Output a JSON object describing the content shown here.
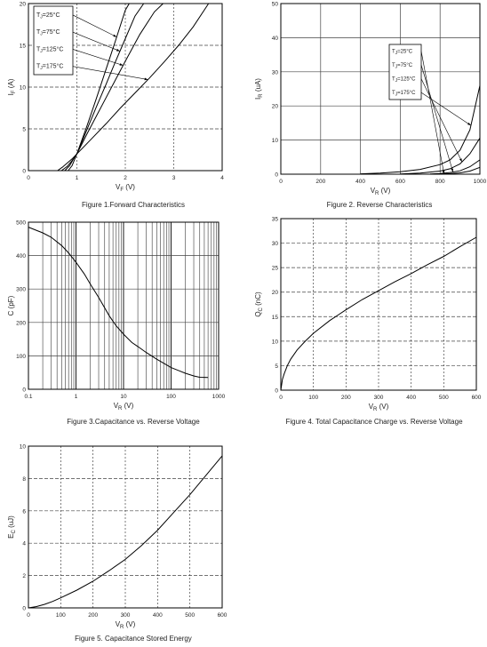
{
  "chart_data": [
    {
      "id": "fig1",
      "type": "line",
      "caption": "Figure 1.Forward Characteristics",
      "xlabel": "VF (V)",
      "xlabel_main": "V",
      "xlabel_sub": "F",
      "xlabel_unit": "(V)",
      "ylabel": "IF (A)",
      "ylabel_main": "I",
      "ylabel_sub": "F",
      "ylabel_unit": "(A)",
      "xlim": [
        0,
        4
      ],
      "ylim": [
        0,
        20
      ],
      "xticks": [
        "0",
        "1",
        "2",
        "3",
        "4"
      ],
      "yticks": [
        "0",
        "5",
        "10",
        "15",
        "20"
      ],
      "legend": [
        "TJ=25°C",
        "TJ=75°C",
        "TJ=125°C",
        "TJ=175°C"
      ],
      "series": [
        {
          "name": "TJ=25°C",
          "x": [
            0.82,
            0.9,
            1.0,
            1.2,
            1.4,
            1.6,
            1.8,
            2.0,
            2.08
          ],
          "y": [
            0,
            0.6,
            2,
            5.2,
            8.6,
            12.1,
            15.6,
            19.2,
            20
          ]
        },
        {
          "name": "TJ=75°C",
          "x": [
            0.75,
            0.85,
            0.95,
            1.0,
            1.2,
            1.4,
            1.6,
            1.8,
            2.0,
            2.2,
            2.38
          ],
          "y": [
            0,
            0.6,
            1.6,
            2,
            4.8,
            7.6,
            10.3,
            13.1,
            15.8,
            18.5,
            20
          ]
        },
        {
          "name": "TJ=125°C",
          "x": [
            0.68,
            0.8,
            0.9,
            1.0,
            1.2,
            1.4,
            1.6,
            1.8,
            2.0,
            2.3,
            2.6,
            2.78
          ],
          "y": [
            0,
            0.5,
            1.2,
            2,
            4.3,
            6.5,
            8.7,
            10.9,
            13.1,
            16.3,
            19.0,
            20
          ]
        },
        {
          "name": "TJ=175°C",
          "x": [
            0.6,
            0.7,
            0.8,
            0.9,
            1.0,
            1.3,
            1.6,
            1.9,
            2.2,
            2.5,
            2.8,
            3.1,
            3.4,
            3.72
          ],
          "y": [
            0,
            0.4,
            0.9,
            1.4,
            2,
            3.8,
            5.6,
            7.5,
            9.3,
            11.1,
            13.0,
            15.0,
            17.2,
            20
          ]
        }
      ]
    },
    {
      "id": "fig2",
      "type": "line",
      "caption": "Figure 2. Reverse Characteristics",
      "xlabel": "VR (V)",
      "xlabel_main": "V",
      "xlabel_sub": "R",
      "xlabel_unit": "(V)",
      "ylabel": "IR (uA)",
      "ylabel_main": "I",
      "ylabel_sub": "R",
      "ylabel_unit": "(uA)",
      "xlim": [
        0,
        1000
      ],
      "ylim": [
        0,
        50
      ],
      "xticks": [
        "0",
        "200",
        "400",
        "600",
        "800",
        "1000"
      ],
      "yticks": [
        "0",
        "10",
        "20",
        "30",
        "40",
        "50"
      ],
      "legend": [
        "TJ=25°C",
        "TJ=75°C",
        "TJ=125°C",
        "TJ=175°C"
      ],
      "series": [
        {
          "name": "TJ=175°C",
          "x": [
            400,
            500,
            600,
            700,
            800,
            850,
            900,
            950,
            1000
          ],
          "y": [
            0.1,
            0.3,
            0.7,
            1.4,
            2.8,
            4.2,
            7.0,
            13.0,
            26
          ]
        },
        {
          "name": "TJ=125°C",
          "x": [
            600,
            700,
            800,
            850,
            900,
            950,
            1000
          ],
          "y": [
            0.05,
            0.3,
            0.9,
            1.6,
            3.0,
            6.0,
            10.6
          ]
        },
        {
          "name": "TJ=75°C",
          "x": [
            750,
            800,
            850,
            900,
            950,
            1000
          ],
          "y": [
            0.05,
            0.2,
            0.5,
            1.0,
            2.2,
            4.2
          ]
        },
        {
          "name": "TJ=25°C",
          "x": [
            800,
            850,
            900,
            950,
            1000
          ],
          "y": [
            0.05,
            0.15,
            0.4,
            0.9,
            2.0
          ]
        }
      ]
    },
    {
      "id": "fig3",
      "type": "line",
      "caption": "Figure 3.Capacitance vs. Reverse Voltage",
      "xlabel": "VR (V)",
      "xlabel_main": "V",
      "xlabel_sub": "R",
      "xlabel_unit": "(V)",
      "ylabel": "C (pF)",
      "ylabel_main": "C",
      "ylabel_sub": "",
      "ylabel_unit": "(pF)",
      "xscale": "log",
      "xlim": [
        0.1,
        1000
      ],
      "ylim": [
        0,
        500
      ],
      "xticks": [
        "0.1",
        "1",
        "10",
        "100",
        "1000"
      ],
      "yticks": [
        "0",
        "100",
        "200",
        "300",
        "400",
        "500"
      ],
      "series": [
        {
          "name": "",
          "x": [
            0.1,
            0.15,
            0.2,
            0.3,
            0.5,
            0.7,
            1,
            1.5,
            2,
            3,
            5,
            7,
            10,
            15,
            20,
            30,
            50,
            70,
            100,
            150,
            200,
            300,
            400,
            600
          ],
          "y": [
            485,
            475,
            468,
            455,
            430,
            408,
            380,
            345,
            315,
            275,
            220,
            190,
            165,
            140,
            128,
            110,
            90,
            78,
            65,
            55,
            48,
            40,
            36,
            35
          ]
        }
      ]
    },
    {
      "id": "fig4",
      "type": "line",
      "caption": "Figure 4. Total Capacitance Charge vs. Reverse Voltage",
      "xlabel": "VR (V)",
      "xlabel_main": "V",
      "xlabel_sub": "R",
      "xlabel_unit": "(V)",
      "ylabel": "QC (nC)",
      "ylabel_main": "Q",
      "ylabel_sub": "C",
      "ylabel_unit": "(nC)",
      "xlim": [
        0,
        600
      ],
      "ylim": [
        0,
        35
      ],
      "xticks": [
        "0",
        "100",
        "200",
        "300",
        "400",
        "500",
        "600"
      ],
      "yticks": [
        "0",
        "5",
        "10",
        "15",
        "20",
        "25",
        "30",
        "35"
      ],
      "series": [
        {
          "name": "",
          "x": [
            0,
            5,
            10,
            20,
            30,
            50,
            75,
            100,
            150,
            200,
            250,
            300,
            350,
            400,
            450,
            500,
            550,
            600
          ],
          "y": [
            0,
            2.2,
            3.3,
            5.0,
            6.3,
            8.2,
            10.0,
            11.6,
            14.2,
            16.4,
            18.5,
            20.3,
            22.1,
            23.8,
            25.6,
            27.3,
            29.3,
            31.2
          ]
        }
      ]
    },
    {
      "id": "fig5",
      "type": "line",
      "caption": "Figure 5. Capacitance Stored Energy",
      "xlabel": "VR (V)",
      "xlabel_main": "V",
      "xlabel_sub": "R",
      "xlabel_unit": "(V)",
      "ylabel": "EC (uJ)",
      "ylabel_main": "E",
      "ylabel_sub": "C",
      "ylabel_unit": "(uJ)",
      "xlim": [
        0,
        600
      ],
      "ylim": [
        0,
        10
      ],
      "xticks": [
        "0",
        "100",
        "200",
        "300",
        "400",
        "500",
        "600"
      ],
      "yticks": [
        "0",
        "2",
        "4",
        "6",
        "8",
        "10"
      ],
      "series": [
        {
          "name": "",
          "x": [
            0,
            25,
            50,
            75,
            100,
            150,
            200,
            250,
            300,
            350,
            400,
            450,
            500,
            550,
            600
          ],
          "y": [
            0,
            0.08,
            0.22,
            0.4,
            0.62,
            1.1,
            1.65,
            2.3,
            3.0,
            3.85,
            4.8,
            5.9,
            7.0,
            8.2,
            9.4
          ]
        }
      ]
    }
  ]
}
